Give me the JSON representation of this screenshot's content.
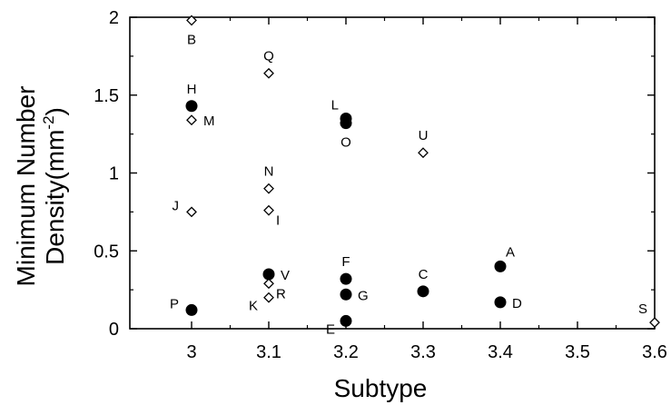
{
  "chart_data": {
    "type": "scatter",
    "xlabel": "Subtype",
    "ylabel_line1": "Minimum Number",
    "ylabel_line2_prefix": "Density(mm",
    "ylabel_line2_sup": "-2",
    "ylabel_line2_suffix": ")",
    "xlim": [
      2.92,
      3.6
    ],
    "ylim": [
      0,
      2
    ],
    "x_ticks": [
      "3",
      "3.1",
      "3.2",
      "3.3",
      "3.4",
      "3.5",
      "3.6"
    ],
    "x_tick_values": [
      3,
      3.1,
      3.2,
      3.3,
      3.4,
      3.5,
      3.6
    ],
    "y_ticks": [
      "0",
      "0.5",
      "1",
      "1.5",
      "2"
    ],
    "y_tick_values": [
      0,
      0.5,
      1,
      1.5,
      2
    ],
    "grid": false,
    "points": [
      {
        "label": "B",
        "x": 3.0,
        "y": 1.98,
        "marker": "open-diamond",
        "label_pos": "below"
      },
      {
        "label": "H",
        "x": 3.0,
        "y": 1.43,
        "marker": "filled-circle",
        "label_pos": "above"
      },
      {
        "label": "M",
        "x": 3.0,
        "y": 1.34,
        "marker": "open-diamond",
        "label_pos": "right"
      },
      {
        "label": "J",
        "x": 3.0,
        "y": 0.75,
        "marker": "open-diamond",
        "label_pos": "left"
      },
      {
        "label": "P",
        "x": 3.0,
        "y": 0.12,
        "marker": "filled-circle",
        "label_pos": "left"
      },
      {
        "label": "Q",
        "x": 3.1,
        "y": 1.64,
        "marker": "open-diamond",
        "label_pos": "above"
      },
      {
        "label": "N",
        "x": 3.1,
        "y": 0.9,
        "marker": "open-diamond",
        "label_pos": "above"
      },
      {
        "label": "I",
        "x": 3.1,
        "y": 0.76,
        "marker": "open-diamond",
        "label_pos": "lower-right"
      },
      {
        "label": "V",
        "x": 3.1,
        "y": 0.35,
        "marker": "filled-circle",
        "label_pos": "right"
      },
      {
        "label": "R",
        "x": 3.1,
        "y": 0.29,
        "marker": "open-diamond",
        "label_pos": "lower-right"
      },
      {
        "label": "K",
        "x": 3.1,
        "y": 0.2,
        "marker": "open-diamond",
        "label_pos": "lower-left"
      },
      {
        "label": "L",
        "x": 3.2,
        "y": 1.35,
        "marker": "filled-circle",
        "label_pos": "upper-left"
      },
      {
        "label": "O",
        "x": 3.2,
        "y": 1.32,
        "marker": "filled-circle",
        "label_pos": "below"
      },
      {
        "label": "F",
        "x": 3.2,
        "y": 0.32,
        "marker": "filled-circle",
        "label_pos": "above"
      },
      {
        "label": "G",
        "x": 3.2,
        "y": 0.22,
        "marker": "filled-circle",
        "label_pos": "right"
      },
      {
        "label": "E",
        "x": 3.2,
        "y": 0.05,
        "marker": "filled-circle",
        "label_pos": "lower-left"
      },
      {
        "label": "U",
        "x": 3.3,
        "y": 1.13,
        "marker": "open-diamond",
        "label_pos": "above"
      },
      {
        "label": "C",
        "x": 3.3,
        "y": 0.24,
        "marker": "filled-circle",
        "label_pos": "above"
      },
      {
        "label": "A",
        "x": 3.4,
        "y": 0.4,
        "marker": "filled-circle",
        "label_pos": "upper-right"
      },
      {
        "label": "D",
        "x": 3.4,
        "y": 0.17,
        "marker": "filled-circle",
        "label_pos": "right"
      },
      {
        "label": "S",
        "x": 3.6,
        "y": 0.04,
        "marker": "open-diamond",
        "label_pos": "upper-left"
      }
    ]
  }
}
